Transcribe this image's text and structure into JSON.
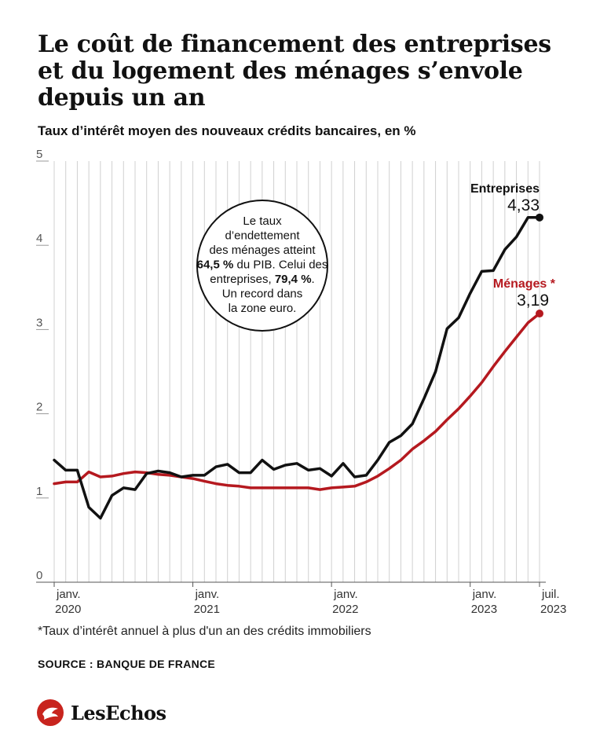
{
  "header": {
    "title": "Le coût de financement des entreprises et du logement des ménages  s’envole depuis un an",
    "subtitle": "Taux d’intérêt moyen des nouveaux crédits bancaires, en %"
  },
  "chart_data": {
    "type": "line",
    "title": "Le coût de financement des entreprises et du logement des ménages  s’envole depuis un an",
    "subtitle": "Taux d’intérêt moyen des nouveaux crédits bancaires, en %",
    "ylim": [
      0,
      5
    ],
    "yticks": [
      0,
      1,
      2,
      3,
      4,
      5
    ],
    "xlim": [
      "2020-01",
      "2023-07"
    ],
    "xticks": [
      {
        "x": "2020-01",
        "label1": "janv.",
        "label2": "2020"
      },
      {
        "x": "2021-01",
        "label1": "janv.",
        "label2": "2021"
      },
      {
        "x": "2022-01",
        "label1": "janv.",
        "label2": "2022"
      },
      {
        "x": "2023-01",
        "label1": "janv.",
        "label2": "2023"
      },
      {
        "x": "2023-07",
        "label1": "juil.",
        "label2": "2023"
      }
    ],
    "grid": "vertical-monthly",
    "x": [
      "2020-01",
      "2020-02",
      "2020-03",
      "2020-04",
      "2020-05",
      "2020-06",
      "2020-07",
      "2020-08",
      "2020-09",
      "2020-10",
      "2020-11",
      "2020-12",
      "2021-01",
      "2021-02",
      "2021-03",
      "2021-04",
      "2021-05",
      "2021-06",
      "2021-07",
      "2021-08",
      "2021-09",
      "2021-10",
      "2021-11",
      "2021-12",
      "2022-01",
      "2022-02",
      "2022-03",
      "2022-04",
      "2022-05",
      "2022-06",
      "2022-07",
      "2022-08",
      "2022-09",
      "2022-10",
      "2022-11",
      "2022-12",
      "2023-01",
      "2023-02",
      "2023-03",
      "2023-04",
      "2023-05",
      "2023-06",
      "2023-07"
    ],
    "series": [
      {
        "name": "Entreprises",
        "color": "#111111",
        "end_label": "4,33",
        "values": [
          1.45,
          1.33,
          1.33,
          0.89,
          0.76,
          1.03,
          1.12,
          1.1,
          1.29,
          1.32,
          1.3,
          1.25,
          1.27,
          1.27,
          1.37,
          1.4,
          1.3,
          1.3,
          1.45,
          1.34,
          1.39,
          1.41,
          1.33,
          1.35,
          1.26,
          1.41,
          1.25,
          1.27,
          1.45,
          1.66,
          1.74,
          1.88,
          2.18,
          2.5,
          3.01,
          3.14,
          3.43,
          3.69,
          3.7,
          3.95,
          4.1,
          4.33,
          4.33
        ]
      },
      {
        "name": "Ménages *",
        "color": "#b5191f",
        "end_label": "3,19",
        "values": [
          1.17,
          1.19,
          1.19,
          1.31,
          1.25,
          1.26,
          1.29,
          1.31,
          1.3,
          1.28,
          1.27,
          1.25,
          1.23,
          1.2,
          1.17,
          1.15,
          1.14,
          1.12,
          1.12,
          1.12,
          1.12,
          1.12,
          1.12,
          1.1,
          1.12,
          1.13,
          1.14,
          1.19,
          1.26,
          1.35,
          1.45,
          1.58,
          1.68,
          1.79,
          1.93,
          2.06,
          2.21,
          2.37,
          2.56,
          2.74,
          2.91,
          3.08,
          3.19
        ]
      }
    ],
    "annotation": {
      "lines": [
        [
          {
            "t": "Le taux"
          }
        ],
        [
          {
            "t": "d’endettement"
          }
        ],
        [
          {
            "t": "des ménages atteint"
          }
        ],
        [
          {
            "t": "64,5 %",
            "b": true
          },
          {
            "t": " du PIB. Celui des"
          }
        ],
        [
          {
            "t": "entreprises, "
          },
          {
            "t": "79,4 %",
            "b": true
          },
          {
            "t": "."
          }
        ],
        [
          {
            "t": "Un record dans"
          }
        ],
        [
          {
            "t": "la zone euro."
          }
        ]
      ]
    }
  },
  "footer": {
    "footnote": "*Taux d’intérêt annuel à plus d'un an des crédits immobiliers",
    "source": "SOURCE : BANQUE DE FRANCE",
    "brand": "LesEchos"
  }
}
